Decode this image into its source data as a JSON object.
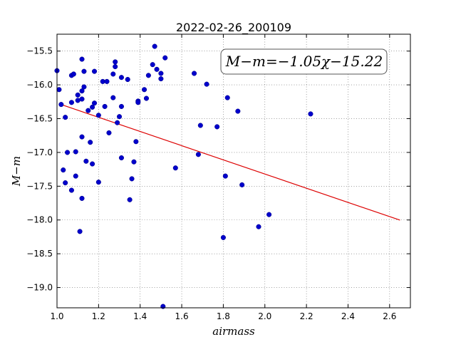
{
  "chart_data": {
    "type": "scatter",
    "title": "2022-02-26_200109",
    "xlabel": "airmass",
    "ylabel": "M−m",
    "xlim": [
      1.0,
      2.7
    ],
    "ylim": [
      -19.3,
      -15.25
    ],
    "x_ticks": [
      1.0,
      1.2,
      1.4,
      1.6,
      1.8,
      2.0,
      2.2,
      2.4,
      2.6
    ],
    "x_tick_labels": [
      "1.0",
      "1.2",
      "1.4",
      "1.6",
      "1.8",
      "2.0",
      "2.2",
      "2.4",
      "2.6"
    ],
    "y_ticks": [
      -15.5,
      -16.0,
      -16.5,
      -17.0,
      -17.5,
      -18.0,
      -18.5,
      -19.0
    ],
    "y_tick_labels": [
      "−15.5",
      "−16.0",
      "−16.5",
      "−17.0",
      "−17.5",
      "−18.0",
      "−18.5",
      "−19.0"
    ],
    "grid": true,
    "annotation": "M−m=−1.05χ−15.22",
    "point_color": "#0000cc",
    "fit_color": "#dd0000",
    "fit": {
      "slope": -1.05,
      "intercept": -15.22,
      "x_range": [
        1.02,
        2.65
      ]
    },
    "points": [
      [
        1.0,
        -15.79
      ],
      [
        1.01,
        -16.07
      ],
      [
        1.02,
        -16.29
      ],
      [
        1.03,
        -17.26
      ],
      [
        1.04,
        -16.48
      ],
      [
        1.04,
        -17.45
      ],
      [
        1.05,
        -17.0
      ],
      [
        1.07,
        -15.86
      ],
      [
        1.07,
        -16.26
      ],
      [
        1.07,
        -17.56
      ],
      [
        1.08,
        -15.84
      ],
      [
        1.09,
        -16.99
      ],
      [
        1.09,
        -17.35
      ],
      [
        1.1,
        -16.15
      ],
      [
        1.1,
        -16.23
      ],
      [
        1.11,
        -18.17
      ],
      [
        1.12,
        -15.62
      ],
      [
        1.12,
        -16.09
      ],
      [
        1.12,
        -16.21
      ],
      [
        1.12,
        -16.77
      ],
      [
        1.12,
        -17.68
      ],
      [
        1.13,
        -15.8
      ],
      [
        1.13,
        -16.03
      ],
      [
        1.14,
        -17.13
      ],
      [
        1.15,
        -16.38
      ],
      [
        1.16,
        -16.85
      ],
      [
        1.17,
        -16.33
      ],
      [
        1.17,
        -17.17
      ],
      [
        1.18,
        -15.8
      ],
      [
        1.18,
        -16.27
      ],
      [
        1.2,
        -16.45
      ],
      [
        1.2,
        -17.44
      ],
      [
        1.22,
        -15.95
      ],
      [
        1.23,
        -16.32
      ],
      [
        1.24,
        -15.95
      ],
      [
        1.25,
        -16.71
      ],
      [
        1.27,
        -16.19
      ],
      [
        1.27,
        -15.84
      ],
      [
        1.28,
        -15.66
      ],
      [
        1.28,
        -15.73
      ],
      [
        1.29,
        -16.56
      ],
      [
        1.3,
        -16.47
      ],
      [
        1.31,
        -15.89
      ],
      [
        1.31,
        -16.32
      ],
      [
        1.31,
        -17.08
      ],
      [
        1.34,
        -15.92
      ],
      [
        1.35,
        -17.7
      ],
      [
        1.36,
        -17.39
      ],
      [
        1.37,
        -17.14
      ],
      [
        1.38,
        -16.84
      ],
      [
        1.39,
        -16.24
      ],
      [
        1.39,
        -16.26
      ],
      [
        1.42,
        -16.07
      ],
      [
        1.43,
        -16.2
      ],
      [
        1.44,
        -15.86
      ],
      [
        1.46,
        -15.7
      ],
      [
        1.47,
        -15.43
      ],
      [
        1.48,
        -15.77
      ],
      [
        1.5,
        -15.83
      ],
      [
        1.5,
        -15.91
      ],
      [
        1.51,
        -19.28
      ],
      [
        1.52,
        -15.6
      ],
      [
        1.57,
        -17.23
      ],
      [
        1.66,
        -15.83
      ],
      [
        1.68,
        -17.03
      ],
      [
        1.69,
        -16.6
      ],
      [
        1.72,
        -15.99
      ],
      [
        1.77,
        -16.62
      ],
      [
        1.8,
        -18.26
      ],
      [
        1.81,
        -17.35
      ],
      [
        1.82,
        -16.19
      ],
      [
        1.87,
        -16.39
      ],
      [
        1.89,
        -17.48
      ],
      [
        1.97,
        -18.1
      ],
      [
        2.02,
        -17.92
      ],
      [
        2.22,
        -16.43
      ]
    ]
  }
}
